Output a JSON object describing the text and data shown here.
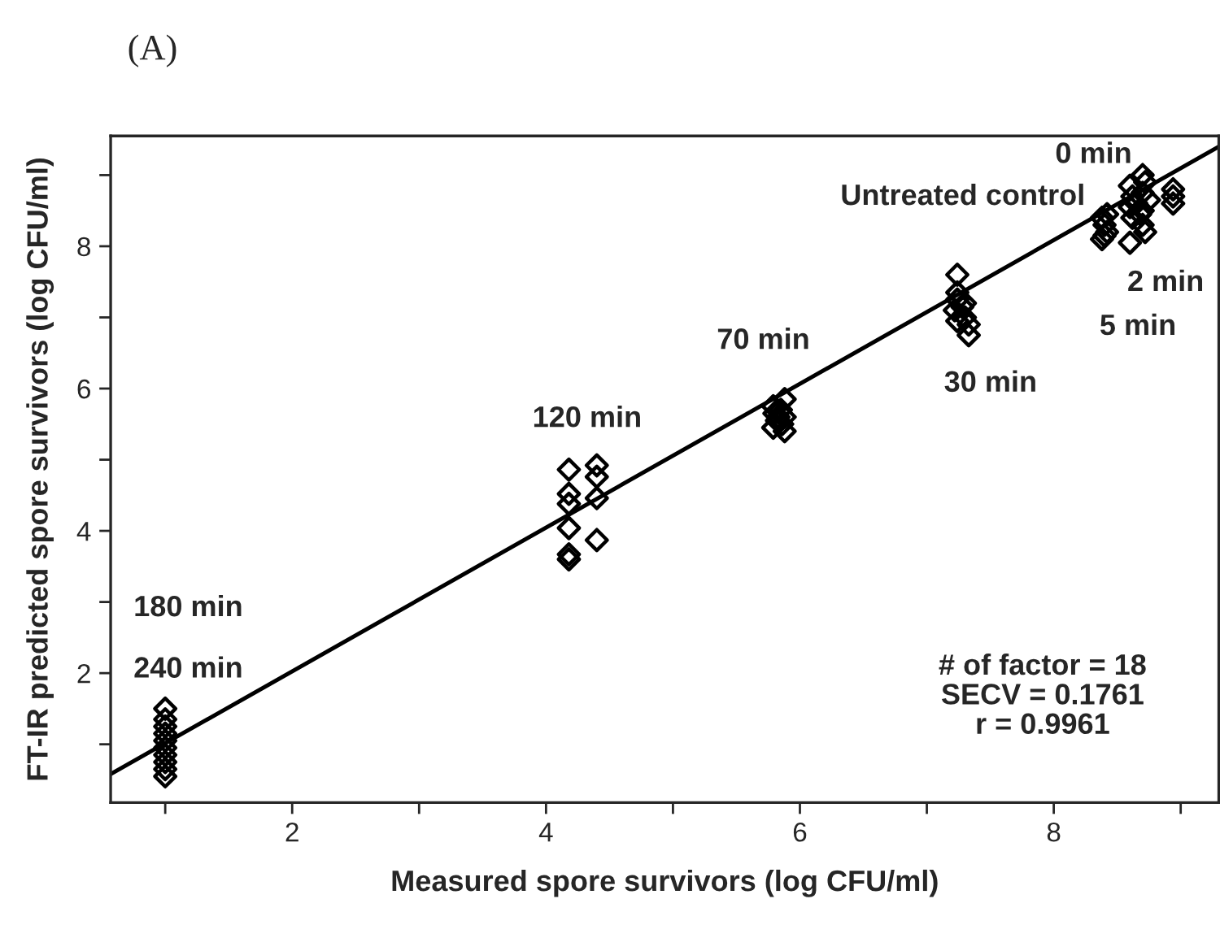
{
  "chart_data": {
    "type": "scatter",
    "title": "(A)",
    "xlabel": "Measured spore survivors (log CFU/ml)",
    "ylabel": "FT-IR predicted spore survivors (log CFU/ml)",
    "xlim": [
      0.57,
      9.3
    ],
    "ylim": [
      0.18,
      9.55
    ],
    "xticks": [
      {
        "value": 1,
        "label": null
      },
      2,
      {
        "value": 3,
        "label": null
      },
      4,
      {
        "value": 5,
        "label": null
      },
      6,
      {
        "value": 7,
        "label": null
      },
      8,
      {
        "value": 9,
        "label": null
      }
    ],
    "yticks": [
      {
        "value": 1,
        "label": null
      },
      2,
      {
        "value": 3,
        "label": null
      },
      4,
      {
        "value": 5,
        "label": null
      },
      6,
      {
        "value": 7,
        "label": null
      },
      8,
      {
        "value": 9,
        "label": null
      }
    ],
    "grid": false,
    "legend": false,
    "series": [
      {
        "marker": "diamond",
        "color": "#000000",
        "x": [
          1,
          1,
          1,
          1,
          1,
          1,
          1,
          1,
          1,
          1,
          4.18,
          4.18,
          4.18,
          4.18,
          4.18,
          4.18,
          4.4,
          4.4,
          4.4,
          4.4,
          5.79,
          5.8,
          5.82,
          5.79,
          5.85,
          5.88,
          5.88,
          5.86,
          5.88,
          5.83,
          7.24,
          7.24,
          7.24,
          7.22,
          7.24,
          7.3,
          7.3,
          7.33,
          7.33,
          7.28,
          8.38,
          8.4,
          8.42,
          8.38,
          8.42,
          8.4,
          8.6,
          8.62,
          8.6,
          8.62,
          8.6,
          8.65,
          8.7,
          8.72,
          8.7,
          8.7,
          8.7,
          8.72,
          8.75,
          8.68,
          8.94,
          8.94,
          8.94
        ],
        "values": [
          1.5,
          1.35,
          1.25,
          1.15,
          1.05,
          0.95,
          0.85,
          0.75,
          0.65,
          0.55,
          4.86,
          4.52,
          4.38,
          4.04,
          3.67,
          3.6,
          4.92,
          4.76,
          4.46,
          3.87,
          5.75,
          5.65,
          5.55,
          5.45,
          5.7,
          5.85,
          5.6,
          5.5,
          5.4,
          5.6,
          7.6,
          7.35,
          7.25,
          7.1,
          6.95,
          7.2,
          7.0,
          6.9,
          6.75,
          7.15,
          8.4,
          8.3,
          8.2,
          8.1,
          8.45,
          8.15,
          8.85,
          8.7,
          8.55,
          8.4,
          8.05,
          8.6,
          9.0,
          8.9,
          8.75,
          8.5,
          8.3,
          8.2,
          8.65,
          8.45,
          8.8,
          8.7,
          8.6
        ]
      },
      {
        "type": "line",
        "marker": "none",
        "line_style": "solid",
        "color": "#000000",
        "x": [
          0.57,
          9.3
        ],
        "values": [
          0.58,
          9.4
        ]
      }
    ],
    "annotations": [
      "0 min",
      "Untreated control",
      "2 min",
      "5 min",
      "30 min",
      "70 min",
      "120 min",
      "180 min",
      "240 min",
      "# of factor = 18\nSECV = 0.1761\nr = 0.9961"
    ]
  }
}
